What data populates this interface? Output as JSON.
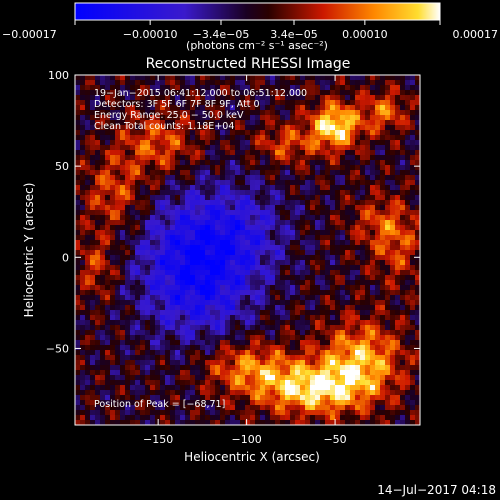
{
  "chart_data": {
    "type": "heatmap",
    "title": "Reconstructed RHESSI Image",
    "xlabel": "Heliocentric X (arcsec)",
    "ylabel": "Heliocentric Y (arcsec)",
    "xlim": [
      -197,
      -2
    ],
    "ylim": [
      -92,
      100
    ],
    "x_ticks": [
      {
        "value": -150,
        "label": "−150"
      },
      {
        "value": -100,
        "label": "−100"
      },
      {
        "value": -50,
        "label": "−50"
      }
    ],
    "y_ticks": [
      {
        "value": -50,
        "label": "−50"
      },
      {
        "value": 0,
        "label": "0"
      },
      {
        "value": 50,
        "label": "50"
      },
      {
        "value": 100,
        "label": "100"
      }
    ],
    "colorbar": {
      "min": -0.00017,
      "max": 0.00017,
      "units": "(photons cm⁻² s⁻¹ asec⁻²)",
      "ticks": [
        {
          "value": -0.00017,
          "label": "−0.00017"
        },
        {
          "value": -0.0001,
          "label": "−0.00010"
        },
        {
          "value": -3.4e-05,
          "label": "−3.4e−05"
        },
        {
          "value": 3.4e-05,
          "label": "3.4e−05"
        },
        {
          "value": 0.0001,
          "label": "0.00010"
        },
        {
          "value": 0.00017,
          "label": "0.00017"
        }
      ]
    },
    "annotations": [
      "19−Jan−2015 06:41:12.000 to 06:51:12.000",
      "Detectors: 3F 5F 6F 7F 8F 9F, Att 0",
      "Energy Range: 25.0 − 50.0 keV",
      "Clean    Total counts: 1.18E+04"
    ],
    "peak_label": "Position of Peak = [−68,71]",
    "sources": [
      {
        "x": -50,
        "y": 72,
        "amp": 1.0,
        "sx": 10,
        "sy": 9
      },
      {
        "x": -22,
        "y": 80,
        "amp": 0.55,
        "sx": 9,
        "sy": 8
      },
      {
        "x": -78,
        "y": 62,
        "amp": 0.45,
        "sx": 12,
        "sy": 8
      },
      {
        "x": -62,
        "y": -72,
        "amp": 0.95,
        "sx": 22,
        "sy": 10
      },
      {
        "x": -35,
        "y": -55,
        "amp": 0.75,
        "sx": 16,
        "sy": 14
      },
      {
        "x": -100,
        "y": -60,
        "amp": 0.6,
        "sx": 18,
        "sy": 10
      },
      {
        "x": -150,
        "y": 62,
        "amp": 0.5,
        "sx": 16,
        "sy": 12
      },
      {
        "x": -175,
        "y": 35,
        "amp": 0.45,
        "sx": 12,
        "sy": 14
      },
      {
        "x": -185,
        "y": -5,
        "amp": 0.4,
        "sx": 8,
        "sy": 12
      },
      {
        "x": -15,
        "y": 5,
        "amp": 0.4,
        "sx": 10,
        "sy": 14
      },
      {
        "x": -25,
        "y": 20,
        "amp": 0.35,
        "sx": 12,
        "sy": 10
      },
      {
        "x": -128,
        "y": -5,
        "amp": -0.95,
        "sx": 22,
        "sy": 26
      },
      {
        "x": -100,
        "y": 15,
        "amp": -0.35,
        "sx": 18,
        "sy": 18
      }
    ]
  },
  "timestamp": "14−Jul−2017 04:18"
}
